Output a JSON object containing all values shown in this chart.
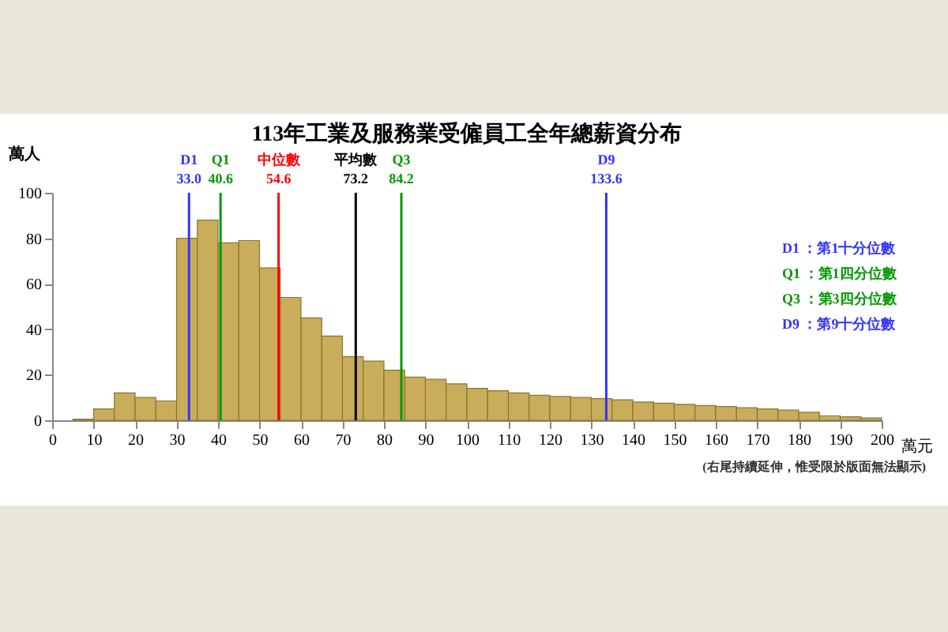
{
  "chart_data": {
    "type": "histogram",
    "title": "113年工業及服務業受僱員工全年總薪資分布",
    "xlabel": "萬元",
    "ylabel": "萬人",
    "bins": [
      5,
      10,
      15,
      20,
      25,
      30,
      35,
      40,
      45,
      50,
      55,
      60,
      65,
      70,
      75,
      80,
      85,
      90,
      95,
      100,
      105,
      110,
      115,
      120,
      125,
      130,
      135,
      140,
      145,
      150,
      155,
      160,
      165,
      170,
      175,
      180,
      185,
      190,
      195,
      200
    ],
    "values": [
      0.5,
      5,
      12,
      10,
      8.5,
      80,
      88,
      78,
      79,
      67,
      54,
      45,
      37,
      28,
      26,
      22,
      19,
      18,
      16,
      14,
      13,
      12,
      11,
      10.5,
      10,
      9.5,
      9,
      8,
      7.5,
      7,
      6.5,
      6,
      5.5,
      5,
      4.5,
      3.5,
      2,
      1.5,
      1
    ],
    "color": "#c9ad5a",
    "xlim": [
      0,
      200
    ],
    "xticks": [
      0,
      10,
      20,
      30,
      40,
      50,
      60,
      70,
      80,
      90,
      100,
      110,
      120,
      130,
      140,
      150,
      160,
      170,
      180,
      190,
      200
    ],
    "ylim": [
      0,
      100
    ],
    "yticks": [
      0,
      20,
      40,
      60,
      80,
      100
    ],
    "grid": false,
    "ref_lines": [
      {
        "axis": "x",
        "value": 33.0,
        "label": "D1 33.0",
        "color": "#3333ff"
      },
      {
        "axis": "x",
        "value": 40.6,
        "label": "Q1 40.6",
        "color": "#009900"
      },
      {
        "axis": "x",
        "value": 54.6,
        "label": "中位數 54.6",
        "color": "#ff0000"
      },
      {
        "axis": "x",
        "value": 73.2,
        "label": "平均數 73.2",
        "color": "#000000"
      },
      {
        "axis": "x",
        "value": 84.2,
        "label": "Q3 84.2",
        "color": "#009900"
      },
      {
        "axis": "x",
        "value": 133.6,
        "label": "D9 133.6",
        "color": "#3333ff"
      }
    ],
    "annotations": [
      "D1 ：第1十分位數",
      "Q1 ：第1四分位數",
      "Q3 ：第3四分位數",
      "D9 ：第9十分位數",
      "(右尾持續延伸，惟受限於版面無法顯示)"
    ]
  }
}
